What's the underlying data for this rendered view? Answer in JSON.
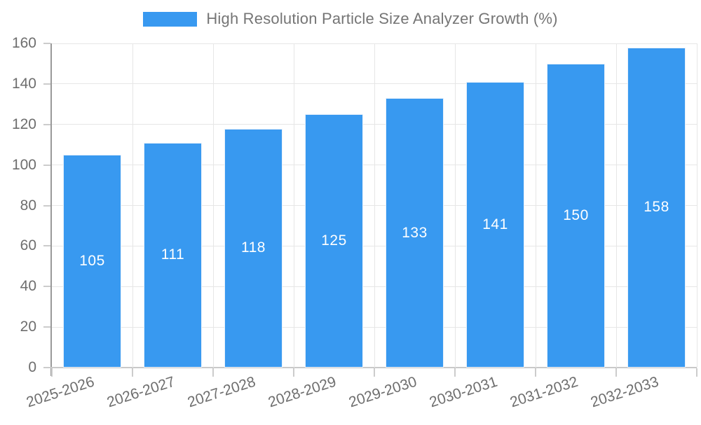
{
  "chart_data": {
    "type": "bar",
    "legend": "High Resolution Particle Size Analyzer Growth (%)",
    "legend_position": "top",
    "categories": [
      "2025-2026",
      "2026-2027",
      "2027-2028",
      "2028-2029",
      "2029-2030",
      "2030-2031",
      "2031-2032",
      "2032-2033"
    ],
    "values": [
      105,
      111,
      118,
      125,
      133,
      141,
      150,
      158
    ],
    "yticks": [
      0,
      20,
      40,
      60,
      80,
      100,
      120,
      140,
      160
    ],
    "ylim": [
      0,
      160
    ],
    "grid": true,
    "xlabel": "",
    "ylabel": ""
  },
  "colors": {
    "bar": "#3899f0",
    "bar_border": "#e8f1fb",
    "bar_value_label": "#ffffff",
    "axis_text": "#6e6e6e",
    "legend_text": "#757575",
    "gridline": "#e6e6e6",
    "y_axis_line": "#999999",
    "x_axis_line": "#c9c9c9",
    "tick": "#cccccc",
    "background": "#ffffff"
  }
}
